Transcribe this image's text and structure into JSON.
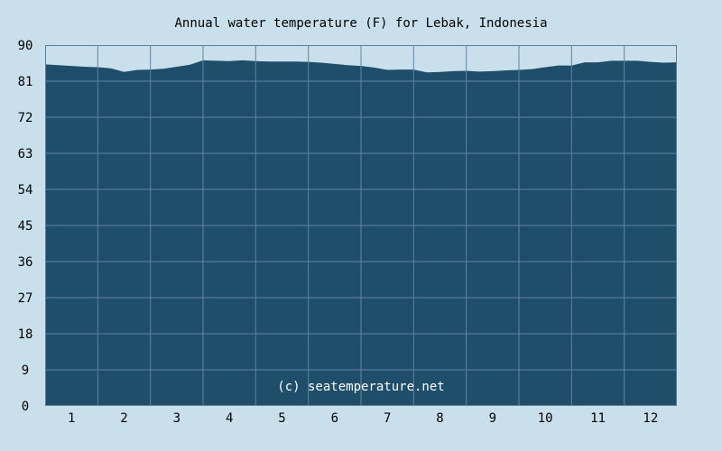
{
  "chart_data": {
    "type": "area",
    "title": "Annual water temperature (F) for Lebak, Indonesia",
    "xlabel": "",
    "ylabel": "",
    "ylim": [
      0,
      90
    ],
    "xlim": [
      0.5,
      12.5
    ],
    "yticks": [
      "0",
      "9",
      "18",
      "27",
      "36",
      "45",
      "54",
      "63",
      "72",
      "81",
      "90"
    ],
    "xticks": [
      "1",
      "2",
      "3",
      "4",
      "5",
      "6",
      "7",
      "8",
      "9",
      "10",
      "11",
      "12"
    ],
    "grid": true,
    "watermark": "(c) seatemperature.net",
    "colors": {
      "background": "#c9e0ec",
      "fill": "#1f4e6b",
      "grid": "#5f84a0",
      "border": "#5a7f98"
    },
    "x": [
      0.5,
      0.75,
      1.0,
      1.25,
      1.5,
      1.75,
      2.0,
      2.25,
      2.5,
      2.75,
      3.0,
      3.25,
      3.5,
      3.75,
      4.0,
      4.25,
      4.5,
      4.75,
      5.0,
      5.25,
      5.5,
      5.75,
      6.0,
      6.25,
      6.5,
      6.75,
      7.0,
      7.25,
      7.5,
      7.75,
      8.0,
      8.25,
      8.5,
      8.75,
      9.0,
      9.25,
      9.5,
      9.75,
      10.0,
      10.25,
      10.5,
      10.75,
      11.0,
      11.25,
      11.5,
      11.75,
      12.0,
      12.25,
      12.5
    ],
    "values": [
      85.2,
      85.0,
      84.8,
      84.6,
      84.5,
      84.2,
      83.3,
      83.8,
      83.9,
      84.1,
      84.6,
      85.1,
      86.2,
      86.1,
      86.0,
      86.2,
      86.0,
      85.9,
      85.9,
      85.9,
      85.8,
      85.6,
      85.3,
      85.0,
      84.8,
      84.4,
      83.8,
      83.9,
      83.9,
      83.2,
      83.3,
      83.5,
      83.6,
      83.4,
      83.5,
      83.7,
      83.8,
      84.0,
      84.5,
      84.9,
      84.9,
      85.7,
      85.7,
      86.1,
      86.1,
      86.1,
      85.8,
      85.6,
      85.7
    ]
  }
}
